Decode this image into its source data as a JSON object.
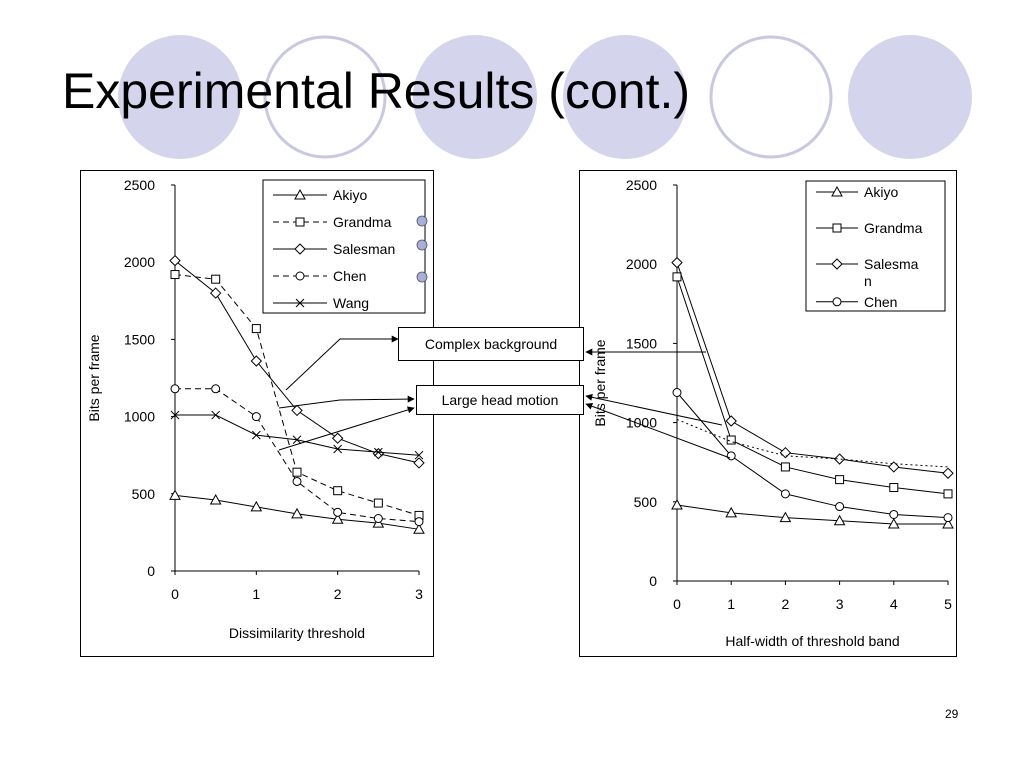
{
  "slide": {
    "title": "Experimental Results (cont.)",
    "page_number": "29"
  },
  "callouts": {
    "complex_background": "Complex background",
    "large_head_motion": "Large head motion"
  },
  "theme": {
    "circle_fill": "#d4d4ec",
    "circle_stroke": "#c8c8e2",
    "legend_dot": "#a9addd"
  },
  "chart_data": [
    {
      "type": "line",
      "xlabel": "Dissimilarity threshold",
      "ylabel": "Bits per frame",
      "xlim": [
        0,
        3
      ],
      "ylim": [
        0,
        2500
      ],
      "xticks": [
        "0",
        "1",
        "2",
        "3"
      ],
      "yticks": [
        "0",
        "500",
        "1000",
        "1500",
        "2000",
        "2500"
      ],
      "legend_position": "top-right",
      "series": [
        {
          "name": "Akiyo",
          "marker": "triangle",
          "dash": "solid",
          "x": [
            0,
            0.5,
            1,
            1.5,
            2,
            2.5,
            3
          ],
          "values": [
            490,
            460,
            415,
            370,
            335,
            310,
            270
          ]
        },
        {
          "name": "Grandma",
          "marker": "square",
          "dash": "dashed",
          "x": [
            0,
            0.5,
            1,
            1.5,
            2,
            2.5,
            3
          ],
          "values": [
            1920,
            1890,
            1570,
            640,
            520,
            440,
            360
          ]
        },
        {
          "name": "Salesman",
          "marker": "diamond",
          "dash": "solid",
          "x": [
            0,
            0.5,
            1,
            1.5,
            2,
            2.5,
            3
          ],
          "values": [
            2010,
            1800,
            1360,
            1040,
            860,
            760,
            700
          ]
        },
        {
          "name": "Chen",
          "marker": "circle",
          "dash": "dashed",
          "x": [
            0,
            0.5,
            1,
            1.5,
            2,
            2.5,
            3
          ],
          "values": [
            1180,
            1180,
            1000,
            580,
            380,
            340,
            320
          ]
        },
        {
          "name": "Wang",
          "marker": "cross",
          "dash": "solid",
          "x": [
            0,
            0.5,
            1,
            1.5,
            2,
            2.5,
            3
          ],
          "values": [
            1010,
            1010,
            880,
            850,
            790,
            770,
            750
          ]
        }
      ]
    },
    {
      "type": "line",
      "xlabel": "Half-width of threshold band",
      "ylabel": "Bits per frame",
      "xlim": [
        0,
        5
      ],
      "ylim": [
        0,
        2500
      ],
      "xticks": [
        "0",
        "1",
        "2",
        "3",
        "4",
        "5"
      ],
      "yticks": [
        "0",
        "500",
        "1000",
        "1500",
        "2000",
        "2500"
      ],
      "legend_position": "top-right",
      "series": [
        {
          "name": "Akiyo",
          "legend_lines": [
            "Akiyo"
          ],
          "marker": "triangle",
          "dash": "solid",
          "x": [
            0,
            1,
            2,
            3,
            4,
            5
          ],
          "values": [
            480,
            430,
            400,
            380,
            360,
            360
          ]
        },
        {
          "name": "Grandma",
          "legend_lines": [
            "Grandma"
          ],
          "marker": "square",
          "dash": "solid",
          "x": [
            0,
            1,
            2,
            3,
            4,
            5
          ],
          "values": [
            1920,
            890,
            720,
            640,
            590,
            550
          ]
        },
        {
          "name": "Salesman",
          "legend_lines": [
            "Salesma",
            "n"
          ],
          "marker": "diamond",
          "dash": "solid",
          "x": [
            0,
            1,
            2,
            3,
            4,
            5
          ],
          "values": [
            2010,
            1010,
            810,
            770,
            720,
            680
          ]
        },
        {
          "name": "Chen",
          "legend_lines": [
            "Chen"
          ],
          "marker": "circle",
          "dash": "solid",
          "x": [
            0,
            1,
            2,
            3,
            4,
            5
          ],
          "values": [
            1190,
            790,
            550,
            470,
            420,
            400
          ]
        },
        {
          "name": "",
          "legend_lines": [],
          "marker": "none",
          "dash": "dotted",
          "x": [
            0,
            1,
            2,
            3,
            4,
            5
          ],
          "values": [
            1020,
            880,
            790,
            770,
            740,
            720
          ]
        }
      ]
    }
  ]
}
